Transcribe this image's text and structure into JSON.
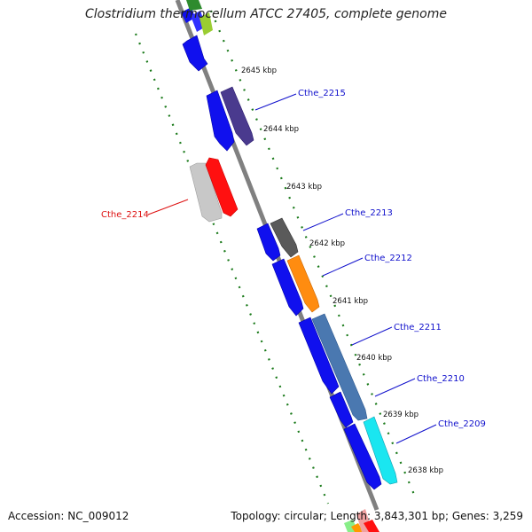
{
  "title": "Clostridium thermocellum ATCC 27405, complete genome",
  "footer": {
    "accession": "Accession: NC_009012",
    "summary": "Topology: circular; Length: 3,843,301 bp; Genes: 3,259"
  },
  "colors": {
    "backbone": "#808080",
    "tick": "#1a7a1a",
    "forward_gene": "#1010ee",
    "reverse_gene": "#ff1010",
    "label_line_forward": "#1010cc",
    "label_line_reverse": "#dd1010"
  },
  "position_ticks": [
    "2645 kbp",
    "2644 kbp",
    "2643 kbp",
    "2642 kbp",
    "2641 kbp",
    "2640 kbp",
    "2639 kbp",
    "2638 kbp"
  ],
  "gene_labels": [
    {
      "text": "Cthe_2215",
      "strand": "forward"
    },
    {
      "text": "Cthe_2214",
      "strand": "reverse"
    },
    {
      "text": "Cthe_2213",
      "strand": "forward"
    },
    {
      "text": "Cthe_2212",
      "strand": "forward"
    },
    {
      "text": "Cthe_2211",
      "strand": "forward"
    },
    {
      "text": "Cthe_2210",
      "strand": "forward"
    },
    {
      "text": "Cthe_2209",
      "strand": "forward"
    }
  ]
}
